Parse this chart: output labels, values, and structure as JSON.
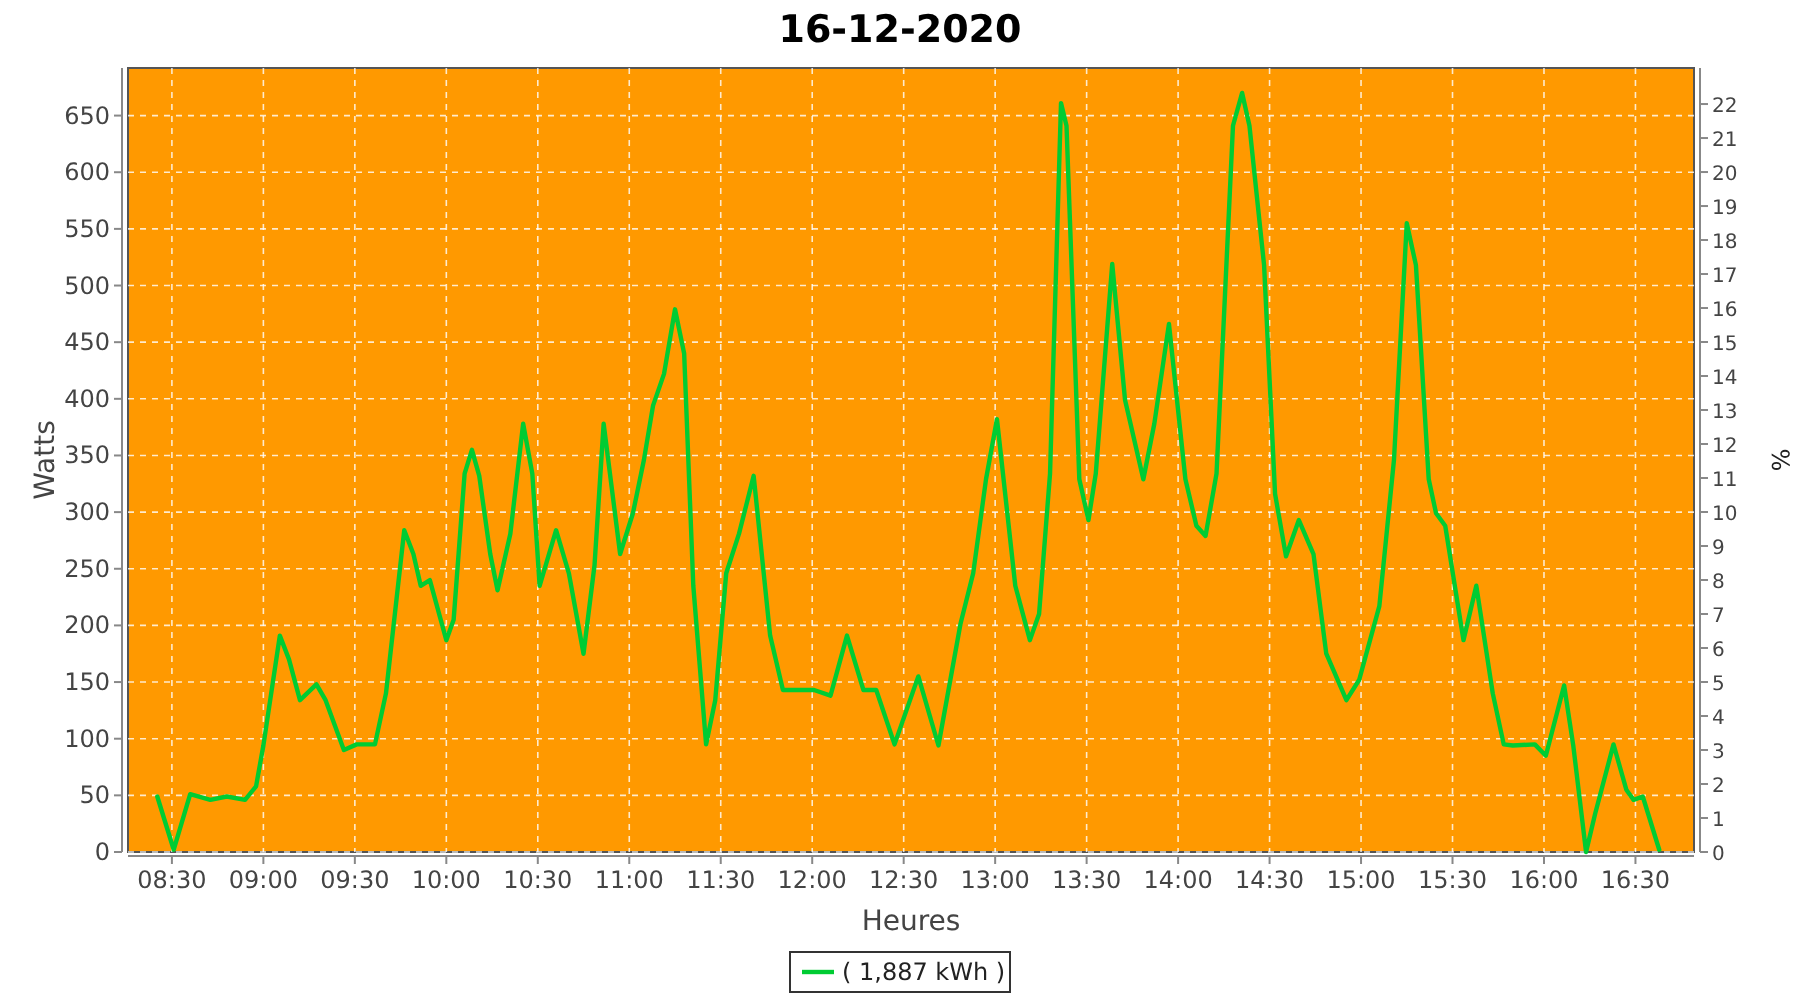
{
  "chart_data": {
    "type": "line",
    "title": "16-12-2020",
    "xlabel": "Heures",
    "ylabel": "Watts",
    "y2label": "%",
    "xlim": [
      8.26,
      16.82
    ],
    "ylim": [
      0,
      692
    ],
    "y2lim": [
      0,
      23.06
    ],
    "xticks": [
      {
        "value": 8.5,
        "label": "08:30"
      },
      {
        "value": 9,
        "label": "09:00"
      },
      {
        "value": 9.5,
        "label": "09:30"
      },
      {
        "value": 10,
        "label": "10:00"
      },
      {
        "value": 10.5,
        "label": "10:30"
      },
      {
        "value": 11,
        "label": "11:00"
      },
      {
        "value": 11.5,
        "label": "11:30"
      },
      {
        "value": 12,
        "label": "12:00"
      },
      {
        "value": 12.5,
        "label": "12:30"
      },
      {
        "value": 13,
        "label": "13:00"
      },
      {
        "value": 13.5,
        "label": "13:30"
      },
      {
        "value": 14,
        "label": "14:00"
      },
      {
        "value": 14.5,
        "label": "14:30"
      },
      {
        "value": 15,
        "label": "15:00"
      },
      {
        "value": 15.5,
        "label": "15:30"
      },
      {
        "value": 16,
        "label": "16:00"
      },
      {
        "value": 16.5,
        "label": "16:30"
      }
    ],
    "yticks": [
      0,
      50,
      100,
      150,
      200,
      250,
      300,
      350,
      400,
      450,
      500,
      550,
      600,
      650
    ],
    "y2ticks": [
      0,
      1,
      2,
      3,
      4,
      5,
      6,
      7,
      8,
      9,
      10,
      11,
      12,
      13,
      14,
      15,
      16,
      17,
      18,
      19,
      20,
      21,
      22
    ],
    "grid": true,
    "legend": "bottom",
    "marker": "none",
    "line_style": "solid",
    "series": [
      {
        "name": "( 1,887 kWh )",
        "color": "#00cc33",
        "x": [
          8.42,
          8.51,
          8.6,
          8.71,
          8.8,
          8.9,
          8.96,
          9.0,
          9.09,
          9.14,
          9.2,
          9.29,
          9.34,
          9.44,
          9.51,
          9.61,
          9.67,
          9.77,
          9.82,
          9.86,
          9.91,
          10.0,
          10.04,
          10.1,
          10.14,
          10.18,
          10.24,
          10.28,
          10.35,
          10.42,
          10.47,
          10.51,
          10.6,
          10.67,
          10.75,
          10.81,
          10.86,
          10.95,
          11.02,
          11.08,
          11.13,
          11.19,
          11.25,
          11.3,
          11.35,
          11.42,
          11.47,
          11.53,
          11.6,
          11.68,
          11.77,
          11.84,
          12.01,
          12.1,
          12.19,
          12.28,
          12.35,
          12.45,
          12.58,
          12.69,
          12.81,
          12.88,
          12.95,
          13.01,
          13.11,
          13.19,
          13.24,
          13.3,
          13.36,
          13.39,
          13.46,
          13.51,
          13.55,
          13.64,
          13.71,
          13.81,
          13.87,
          13.95,
          14.04,
          14.1,
          14.15,
          14.21,
          14.3,
          14.35,
          14.39,
          14.47,
          14.53,
          14.59,
          14.66,
          14.74,
          14.81,
          14.92,
          14.99,
          15.1,
          15.18,
          15.25,
          15.3,
          15.37,
          15.41,
          15.46,
          15.56,
          15.63,
          15.72,
          15.78,
          15.83,
          15.95,
          16.01,
          16.11,
          16.16,
          16.23,
          16.28,
          16.38,
          16.45,
          16.49,
          16.54,
          16.63
        ],
        "values": [
          49,
          2,
          51,
          46,
          49,
          46,
          58,
          94,
          191,
          170,
          134,
          148,
          134,
          90,
          95,
          95,
          140,
          284,
          263,
          235,
          240,
          187,
          205,
          334,
          355,
          332,
          263,
          231,
          281,
          378,
          334,
          235,
          284,
          246,
          175,
          253,
          378,
          263,
          299,
          346,
          394,
          422,
          479,
          440,
          235,
          95,
          134,
          246,
          281,
          332,
          191,
          143,
          143,
          138,
          191,
          143,
          143,
          95,
          155,
          94,
          201,
          246,
          329,
          382,
          235,
          187,
          210,
          334,
          661,
          641,
          329,
          293,
          334,
          519,
          399,
          329,
          378,
          466,
          329,
          288,
          279,
          334,
          641,
          670,
          641,
          518,
          316,
          261,
          293,
          263,
          175,
          134,
          152,
          217,
          346,
          555,
          518,
          329,
          299,
          288,
          187,
          235,
          140,
          95,
          94,
          95,
          85,
          147,
          94,
          0,
          34,
          95,
          55,
          46,
          49,
          2
        ]
      }
    ]
  }
}
